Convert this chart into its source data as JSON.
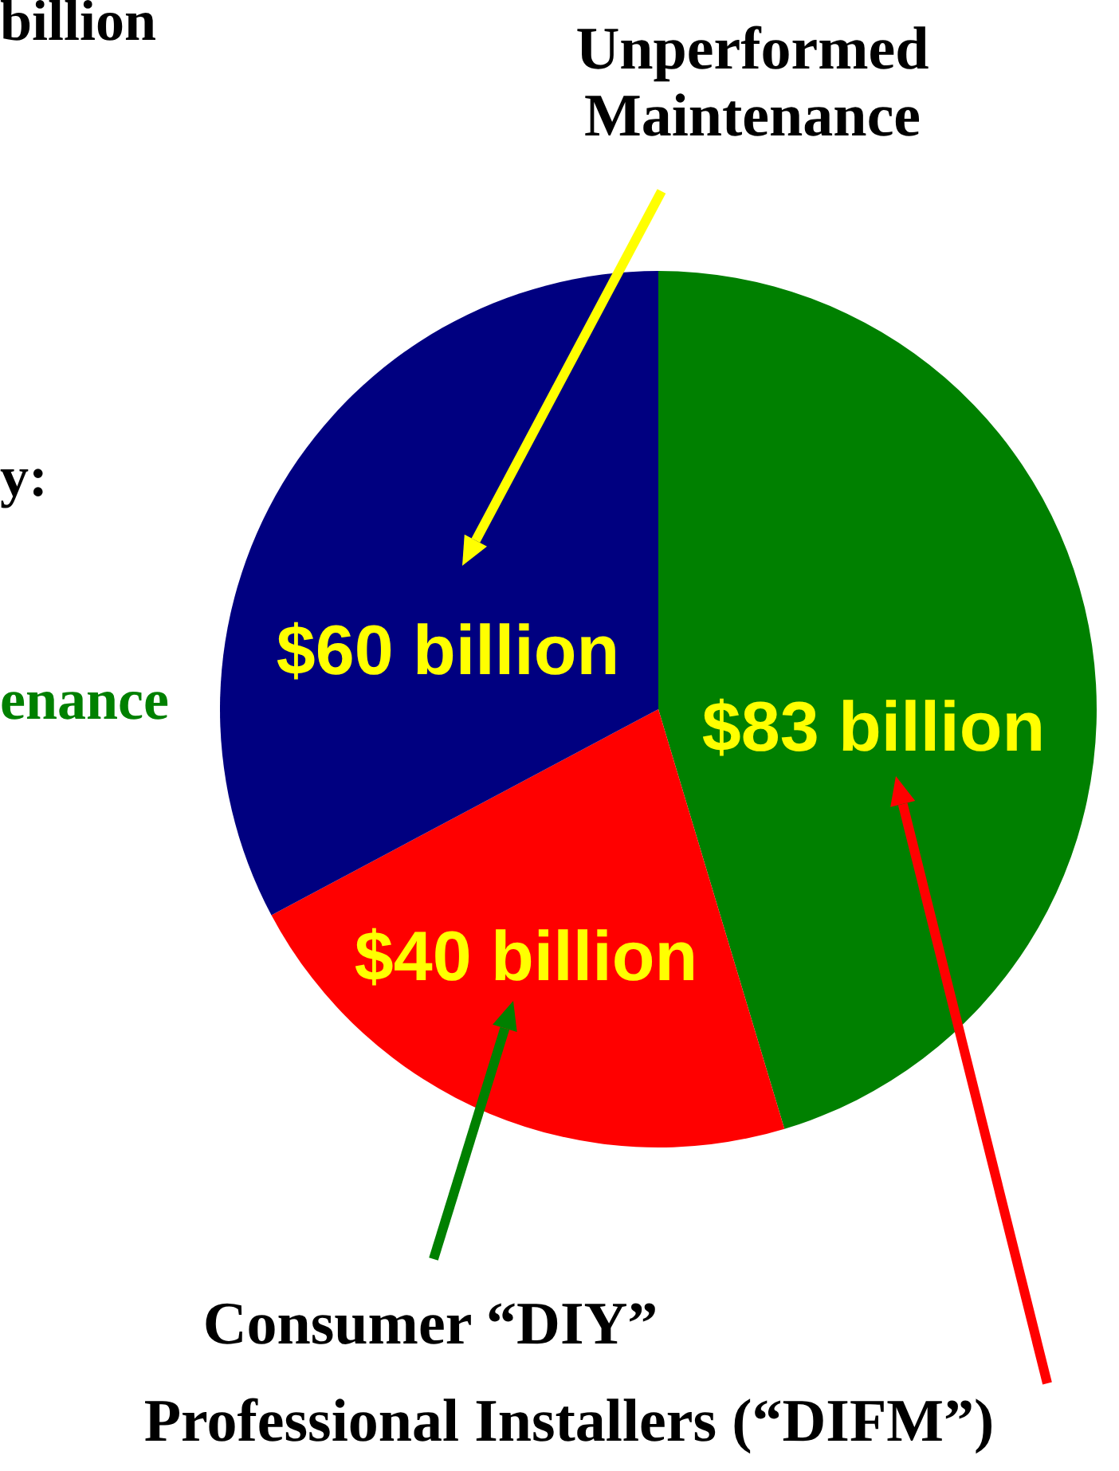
{
  "chart_data": {
    "type": "pie",
    "categories": [
      "Professional Installers (“DIFM”)",
      "Consumer “DIY”",
      "Unperformed Maintenance"
    ],
    "values": [
      83,
      40,
      60
    ],
    "colors": [
      "#008000",
      "#ff0000",
      "#000080"
    ],
    "value_labels": [
      "$83 billion",
      "$40 billion",
      "$60 billion"
    ],
    "annotations": [
      "billion",
      "y:",
      "enance"
    ]
  }
}
